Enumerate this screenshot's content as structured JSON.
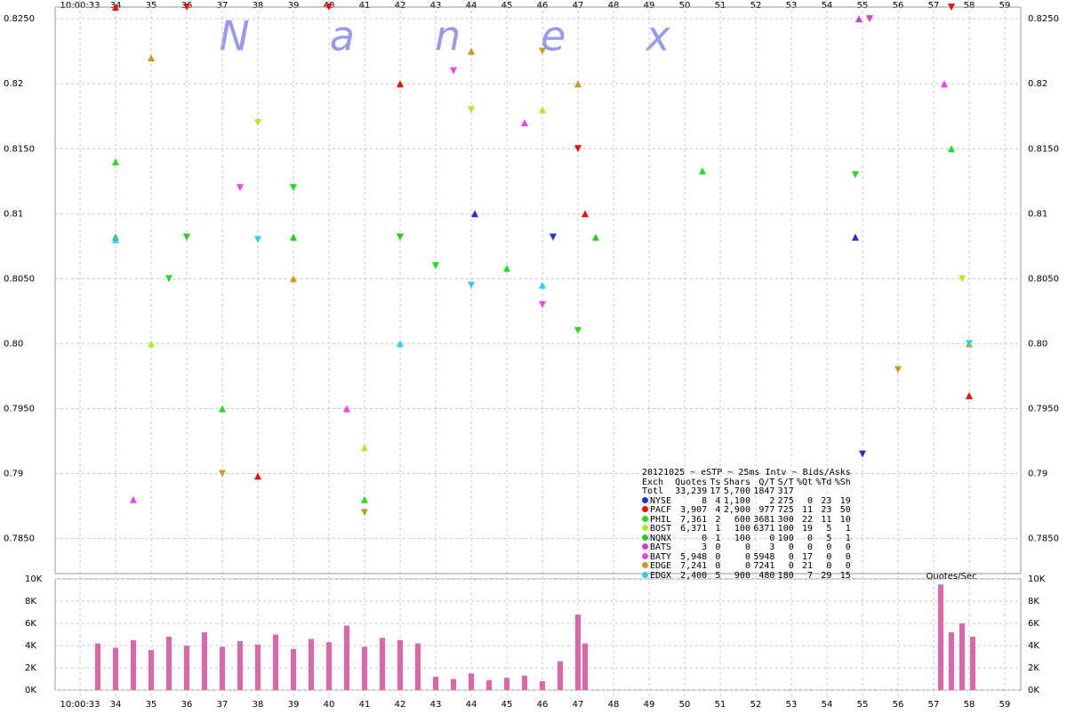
{
  "chart_data": [
    {
      "type": "scatter",
      "annotation": "Nanex",
      "legend_title": "20121025 ~ eSTP ~ 25ms Intv ~ Bids/Asks",
      "legend_columns": [
        "Exch",
        "Quotes",
        "Ts",
        "Shars",
        "Q/T",
        "S/T",
        "%Qt",
        "%Td",
        "%Sh"
      ],
      "total": [
        "Totl",
        "33,239",
        "17",
        "5,700",
        "1847",
        "317"
      ],
      "xlim": [
        32.3,
        59.45
      ],
      "xticks": [
        {
          "value": 33,
          "label": "10:00:33"
        },
        34,
        35,
        36,
        37,
        38,
        39,
        40,
        41,
        42,
        43,
        44,
        45,
        46,
        47,
        48,
        49,
        50,
        51,
        52,
        53,
        54,
        55,
        56,
        57,
        58,
        59
      ],
      "ylim": [
        0.7823,
        0.8259
      ],
      "yticks": [
        {
          "value": 0.785,
          "label": "0.7850"
        },
        {
          "value": 0.79,
          "label": "0.79"
        },
        {
          "value": 0.795,
          "label": "0.7950"
        },
        {
          "value": 0.8,
          "label": "0.80"
        },
        {
          "value": 0.805,
          "label": "0.8050"
        },
        {
          "value": 0.81,
          "label": "0.81"
        },
        {
          "value": 0.815,
          "label": "0.8150"
        },
        {
          "value": 0.82,
          "label": "0.82"
        },
        {
          "value": 0.825,
          "label": "0.8250"
        }
      ],
      "grid": true,
      "series": [
        {
          "name": "NYSE",
          "color": "#2233cc",
          "stats": [
            "8",
            "4",
            "1,100",
            "2",
            "275",
            "0",
            "23",
            "19"
          ],
          "x": [
            44.1,
            46.3,
            54.8,
            55.0
          ],
          "values": [
            0.81,
            0.8082,
            0.8082,
            0.7915
          ]
        },
        {
          "name": "PACF",
          "color": "#ee1100",
          "stats": [
            "3,907",
            "4",
            "2,900",
            "977",
            "725",
            "11",
            "23",
            "50"
          ],
          "x": [
            34,
            36,
            38,
            40,
            42,
            47,
            47.2,
            57.5,
            58
          ],
          "values": [
            0.8259,
            0.8259,
            0.7898,
            0.8259,
            0.82,
            0.815,
            0.81,
            0.8259,
            0.796
          ]
        },
        {
          "name": "PHIL",
          "color": "#22dd22",
          "stats": [
            "7,361",
            "2",
            "600",
            "3681",
            "300",
            "22",
            "11",
            "10"
          ],
          "x": [
            34,
            35.5,
            37,
            39,
            41,
            43,
            45,
            47,
            50.5,
            54.8,
            57.5
          ],
          "values": [
            0.814,
            0.805,
            0.795,
            0.812,
            0.788,
            0.806,
            0.8058,
            0.801,
            0.8133,
            0.813,
            0.815
          ]
        },
        {
          "name": "BOST",
          "color": "#aaee22",
          "stats": [
            "6,371",
            "1",
            "100",
            "6371",
            "100",
            "19",
            "5",
            "1"
          ],
          "x": [
            35,
            38,
            41,
            44,
            46,
            57.8
          ],
          "values": [
            0.8,
            0.817,
            0.792,
            0.818,
            0.818,
            0.805
          ]
        },
        {
          "name": "NQNX",
          "color": "#22cc22",
          "stats": [
            "0",
            "1",
            "100",
            "0",
            "100",
            "0",
            "5",
            "1"
          ],
          "x": [
            34,
            36,
            39,
            42,
            47.5
          ],
          "values": [
            0.8082,
            0.8082,
            0.8082,
            0.8082,
            0.8082
          ]
        },
        {
          "name": "BATS",
          "color": "#cc44cc",
          "stats": [
            "3",
            "0",
            "0",
            "3",
            "0",
            "0",
            "0",
            "0"
          ],
          "x": [
            54.9,
            55.2
          ],
          "values": [
            0.825,
            0.825
          ]
        },
        {
          "name": "BATY",
          "color": "#ee44ee",
          "stats": [
            "5,948",
            "0",
            "0",
            "5948",
            "0",
            "17",
            "0",
            "0"
          ],
          "x": [
            34.5,
            37.5,
            40.5,
            43.5,
            45.5,
            46,
            57.3
          ],
          "values": [
            0.788,
            0.812,
            0.795,
            0.821,
            0.817,
            0.803,
            0.82
          ]
        },
        {
          "name": "EDGE",
          "color": "#cc9922",
          "stats": [
            "7,241",
            "0",
            "0",
            "7241",
            "0",
            "21",
            "0",
            "0"
          ],
          "x": [
            35,
            37,
            39,
            41,
            44,
            46,
            47,
            56,
            58
          ],
          "values": [
            0.822,
            0.79,
            0.805,
            0.787,
            0.8225,
            0.8225,
            0.82,
            0.798,
            0.8
          ]
        },
        {
          "name": "EDGX",
          "color": "#33ccee",
          "stats": [
            "2,400",
            "5",
            "900",
            "480",
            "180",
            "7",
            "29",
            "15"
          ],
          "x": [
            34,
            38,
            42,
            44,
            46,
            58
          ],
          "values": [
            0.808,
            0.808,
            0.8,
            0.8045,
            0.8045,
            0.8
          ]
        }
      ]
    },
    {
      "type": "bar",
      "title": "Quotes/Sec",
      "color": "#dd66aa",
      "xlim": [
        32.3,
        59.45
      ],
      "ylim": [
        0,
        10000
      ],
      "yticks": [
        {
          "value": 0,
          "label": "0K"
        },
        {
          "value": 2000,
          "label": "2K"
        },
        {
          "value": 4000,
          "label": "4K"
        },
        {
          "value": 6000,
          "label": "6K"
        },
        {
          "value": 8000,
          "label": "8K"
        },
        {
          "value": 10000,
          "label": "10K"
        }
      ],
      "grid": true,
      "x": [
        33.5,
        34,
        34.5,
        35,
        35.5,
        36,
        36.5,
        37,
        37.5,
        38,
        38.5,
        39,
        39.5,
        40,
        40.5,
        41,
        41.5,
        42,
        42.5,
        43,
        43.5,
        44,
        44.5,
        45,
        45.5,
        46,
        46.5,
        47,
        47.2,
        57.2,
        57.5,
        57.8,
        58.1
      ],
      "values": [
        4200,
        3800,
        4500,
        3600,
        4800,
        4000,
        5200,
        3900,
        4400,
        4100,
        5000,
        3700,
        4600,
        4300,
        5800,
        3900,
        4700,
        4500,
        4200,
        1200,
        1000,
        1500,
        900,
        1100,
        1300,
        800,
        2600,
        6800,
        4200,
        9500,
        5200,
        6000,
        4800
      ]
    }
  ]
}
